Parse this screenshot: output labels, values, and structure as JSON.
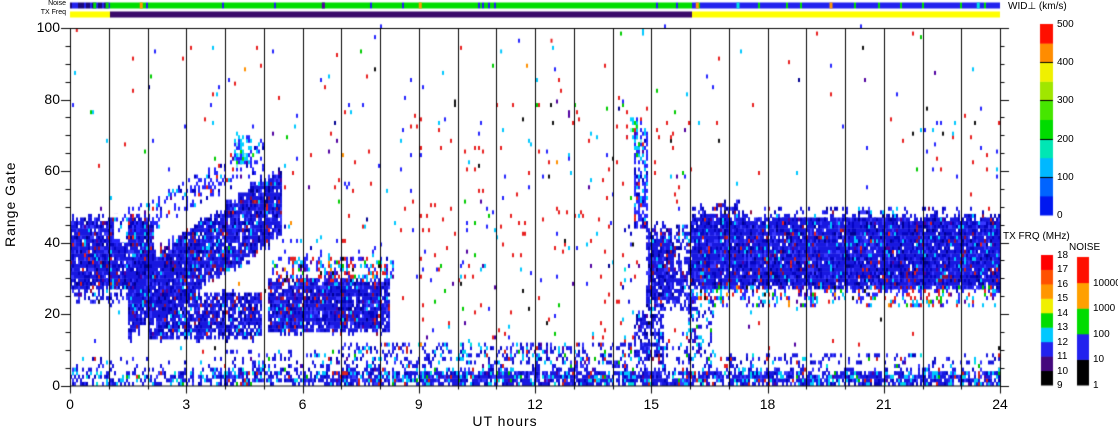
{
  "strips": {
    "noise_label": "Noise",
    "txfreq_label": "TX Freq",
    "noise_segments": [
      {
        "t0": 0,
        "t1": 1.05,
        "base": "#2222ee",
        "alt": "#1a0a7a",
        "alt_prob": 0.48,
        "flecks": [
          {
            "t": 0.6,
            "c": "#00dd00"
          },
          {
            "t": 0.92,
            "c": "#00dd00"
          }
        ]
      },
      {
        "t0": 1.05,
        "t1": 16.05,
        "base": "#00dd00",
        "alt": "#2222ee",
        "alt_prob": 0.05,
        "flecks": [
          {
            "t": 1.8,
            "c": "#ff9900"
          },
          {
            "t": 9.0,
            "c": "#ff9900"
          },
          {
            "t": 6.5,
            "c": "#5000a0"
          }
        ]
      },
      {
        "t0": 16.05,
        "t1": 24,
        "base": "#2222ee",
        "alt": "#00dd00",
        "alt_prob": 0.05,
        "flecks": [
          {
            "t": 16.15,
            "c": "#ff9900"
          },
          {
            "t": 17.2,
            "c": "#00e0e0"
          },
          {
            "t": 19.6,
            "c": "#ff9900"
          },
          {
            "t": 23.4,
            "c": "#00e0e0"
          }
        ]
      }
    ],
    "tx_segments": [
      {
        "t0": 0,
        "t1": 1.05,
        "base": "#ffff00"
      },
      {
        "t0": 1.05,
        "t1": 16.07,
        "base": "#3a0a6a"
      },
      {
        "t0": 16.07,
        "t1": 24,
        "base": "#ffff00"
      }
    ]
  },
  "axes": {
    "x": {
      "label": "UT hours",
      "range": [
        0,
        24
      ],
      "ticks": [
        "0",
        "3",
        "6",
        "9",
        "12",
        "15",
        "18",
        "21",
        "24"
      ],
      "tick_values": [
        0,
        3,
        6,
        9,
        12,
        15,
        18,
        21,
        24
      ],
      "minor_step": 1
    },
    "y": {
      "label": "Range Gate",
      "range": [
        0,
        100
      ],
      "ticks": [
        "0",
        "20",
        "40",
        "60",
        "80",
        "100"
      ],
      "tick_values": [
        0,
        20,
        40,
        60,
        80,
        100
      ],
      "minor_step": 5
    }
  },
  "colorbars": {
    "wid": {
      "title": "WID⊥ (km/s)",
      "ticks": [
        "0",
        "100",
        "200",
        "300",
        "400",
        "500"
      ],
      "colors": [
        "#0018f0",
        "#0064ff",
        "#00b8ff",
        "#00e6b4",
        "#00dc00",
        "#46e600",
        "#a0e600",
        "#f0f000",
        "#ff8c00",
        "#ff0f00"
      ],
      "divider_every": 2
    },
    "tx": {
      "title": "TX FRQ (MHz)",
      "ticks": [
        "9",
        "10",
        "11",
        "12",
        "13",
        "14",
        "15",
        "16",
        "17",
        "18"
      ],
      "colors": [
        "#000000",
        "#44087c",
        "#2222ee",
        "#00c8ff",
        "#00dc00",
        "#f0f000",
        "#ff9600",
        "#ff5000",
        "#ff0000"
      ],
      "divider_every": 0
    },
    "noise": {
      "title": "NOISE",
      "ticks": [
        "1",
        "10",
        "100",
        "1000",
        "10000"
      ],
      "colors": [
        "#000000",
        "#2222ee",
        "#00dc00",
        "#ffa000",
        "#ff1000"
      ],
      "divider_every": 0
    }
  },
  "chart_data": {
    "type": "heatmap",
    "title": "",
    "xlabel": "UT hours",
    "ylabel": "Range Gate",
    "value_label": "WID⊥ (km/s)",
    "xlim": [
      0,
      24
    ],
    "ylim": [
      0,
      100
    ],
    "hour_gridlines": true,
    "seed": 1234,
    "palettes": {
      "dense": [
        [
          "#1818e0",
          0.55
        ],
        [
          "#0505c0",
          0.18
        ],
        [
          "#3838ff",
          0.12
        ],
        [
          "#000090",
          0.05
        ],
        [
          "#00c8ff",
          0.04
        ],
        [
          "#901040",
          0.03
        ],
        [
          "#d02020",
          0.015
        ],
        [
          "#5000a0",
          0.015
        ]
      ],
      "dense_sp": [
        [
          "#1818e0",
          0.5
        ],
        [
          "#0505c0",
          0.12
        ],
        [
          "#3838ff",
          0.12
        ],
        [
          "#00c8ff",
          0.14
        ],
        [
          "#00e0e0",
          0.04
        ],
        [
          "#d02020",
          0.04
        ],
        [
          "#00c000",
          0.02
        ],
        [
          "#5000a0",
          0.02
        ]
      ],
      "speckle": [
        [
          "#2525ff",
          0.35
        ],
        [
          "#00c8ff",
          0.25
        ],
        [
          "#e82020",
          0.2
        ],
        [
          "#00cc00",
          0.06
        ],
        [
          "#5000a0",
          0.07
        ],
        [
          "#101010",
          0.04
        ],
        [
          "#ff9000",
          0.03
        ]
      ],
      "speckle_blue": [
        [
          "#2525ff",
          0.6
        ],
        [
          "#0000c0",
          0.15
        ],
        [
          "#00c8ff",
          0.15
        ],
        [
          "#5000a0",
          0.05
        ],
        [
          "#e82020",
          0.05
        ]
      ],
      "cyan": [
        [
          "#00d0ff",
          0.5
        ],
        [
          "#2525ff",
          0.3
        ],
        [
          "#00e000",
          0.1
        ],
        [
          "#80f0f0",
          0.1
        ]
      ],
      "noise": [
        [
          "#e82020",
          0.33
        ],
        [
          "#2525ff",
          0.28
        ],
        [
          "#00c8ff",
          0.17
        ],
        [
          "#5000a0",
          0.07
        ],
        [
          "#101010",
          0.05
        ],
        [
          "#00cc00",
          0.04
        ],
        [
          "#ff9000",
          0.02
        ],
        [
          "#000090",
          0.04
        ]
      ],
      "noise_red": [
        [
          "#e82020",
          0.55
        ],
        [
          "#2525ff",
          0.15
        ],
        [
          "#00c8ff",
          0.12
        ],
        [
          "#5000a0",
          0.08
        ],
        [
          "#101010",
          0.05
        ],
        [
          "#00cc00",
          0.05
        ]
      ]
    },
    "regions": [
      {
        "type": "block",
        "t0": 0,
        "t1": 2.15,
        "g0": 27,
        "g1": 46,
        "d": 0.93,
        "pal": "dense"
      },
      {
        "type": "block",
        "t0": 0.1,
        "t1": 2.4,
        "g0": 23,
        "g1": 27,
        "d": 0.4,
        "pal": "dense"
      },
      {
        "type": "hole",
        "t0": 1.12,
        "t1": 1.5,
        "g0": 40,
        "g1": 47
      },
      {
        "type": "diag",
        "t0": 1.5,
        "t1": 5.45,
        "gc0": 22,
        "gc1": 51,
        "hw": 9,
        "d": 0.92,
        "pal": "dense"
      },
      {
        "type": "block",
        "t0": 2.0,
        "t1": 4.95,
        "g0": 13,
        "g1": 25,
        "d": 0.82,
        "pal": "dense"
      },
      {
        "type": "diag",
        "t0": 1.1,
        "t1": 5.0,
        "gc0": 42,
        "gc1": 64,
        "hw": 3.5,
        "d": 0.3,
        "pal": "speckle_blue"
      },
      {
        "type": "block",
        "t0": 4.25,
        "t1": 4.72,
        "g0": 62,
        "g1": 69,
        "d": 0.6,
        "pal": "cyan"
      },
      {
        "type": "block",
        "t0": 5.1,
        "t1": 8.25,
        "g0": 15,
        "g1": 29,
        "d": 0.9,
        "pal": "dense"
      },
      {
        "type": "noise",
        "t0": 5.2,
        "t1": 8.35,
        "g0": 29,
        "g1": 35,
        "d": 0.4,
        "pal": "speckle"
      },
      {
        "type": "noise",
        "t0": 2.5,
        "t1": 8.3,
        "g0": 35,
        "g1": 44,
        "d": 0.05,
        "pal": "speckle_blue"
      },
      {
        "type": "noise",
        "t0": 5.5,
        "t1": 8.4,
        "g0": 44,
        "g1": 78,
        "d": 0.012,
        "pal": "noise"
      },
      {
        "type": "noise",
        "t0": 8.4,
        "t1": 16,
        "g0": 12,
        "g1": 78,
        "d": 0.022,
        "pal": "noise_red"
      },
      {
        "type": "noise",
        "t0": 14.25,
        "t1": 14.5,
        "g0": 10,
        "g1": 45,
        "d": 0.12,
        "pal": "dense_sp"
      },
      {
        "type": "block",
        "t0": 14.55,
        "t1": 14.9,
        "g0": 44,
        "g1": 71,
        "d": 0.55,
        "pal": "speckle_blue"
      },
      {
        "type": "noise",
        "t0": 14.45,
        "t1": 14.75,
        "g0": 66,
        "g1": 74,
        "d": 0.4,
        "pal": "cyan"
      },
      {
        "type": "block",
        "t0": 14.85,
        "t1": 16.05,
        "g0": 21,
        "g1": 44,
        "d": 0.55,
        "pal": "dense"
      },
      {
        "type": "block",
        "t0": 14.9,
        "t1": 15.6,
        "g0": 24,
        "g1": 40,
        "d": 0.8,
        "pal": "dense"
      },
      {
        "type": "block",
        "t0": 14.55,
        "t1": 15.35,
        "g0": 7,
        "g1": 20,
        "d": 0.55,
        "pal": "dense"
      },
      {
        "type": "noise",
        "t0": 15.9,
        "t1": 16.6,
        "g0": 8,
        "g1": 26,
        "d": 0.3,
        "pal": "dense_sp"
      },
      {
        "type": "block",
        "t0": 16.05,
        "t1": 24,
        "g0": 27,
        "g1": 46,
        "d": 0.96,
        "pal": "dense"
      },
      {
        "type": "block",
        "t0": 16.05,
        "t1": 17.3,
        "g0": 44,
        "g1": 50,
        "d": 0.5,
        "pal": "dense"
      },
      {
        "type": "noise",
        "t0": 16.05,
        "t1": 24,
        "g0": 46,
        "g1": 49,
        "d": 0.22,
        "pal": "dense"
      },
      {
        "type": "noise",
        "t0": 16.05,
        "t1": 24,
        "g0": 22,
        "g1": 27,
        "d": 0.3,
        "pal": "speckle"
      },
      {
        "type": "block",
        "t0": 0,
        "t1": 2,
        "g0": 0,
        "g1": 3,
        "d": 0.42,
        "pal": "dense_sp"
      },
      {
        "type": "block",
        "t0": 2,
        "t1": 4,
        "g0": 0,
        "g1": 3,
        "d": 0.5,
        "pal": "dense_sp"
      },
      {
        "type": "block",
        "t0": 4,
        "t1": 7,
        "g0": 0,
        "g1": 3,
        "d": 0.65,
        "pal": "dense_sp"
      },
      {
        "type": "block",
        "t0": 7,
        "t1": 16,
        "g0": 0,
        "g1": 3,
        "d": 0.85,
        "pal": "dense_sp"
      },
      {
        "type": "block",
        "t0": 16,
        "t1": 24,
        "g0": 0,
        "g1": 3,
        "d": 0.8,
        "pal": "dense_sp"
      },
      {
        "type": "noise",
        "t0": 0,
        "t1": 4,
        "g0": 3,
        "g1": 7,
        "d": 0.12,
        "pal": "dense_sp"
      },
      {
        "type": "noise",
        "t0": 4,
        "t1": 7,
        "g0": 3,
        "g1": 9,
        "d": 0.2,
        "pal": "dense_sp"
      },
      {
        "type": "noise",
        "t0": 7,
        "t1": 16,
        "g0": 3,
        "g1": 11,
        "d": 0.28,
        "pal": "dense_sp"
      },
      {
        "type": "noise",
        "t0": 16,
        "t1": 24,
        "g0": 3,
        "g1": 8,
        "d": 0.2,
        "pal": "dense_sp"
      },
      {
        "type": "noise",
        "t0": 21.3,
        "t1": 24,
        "g0": 60,
        "g1": 73,
        "d": 0.035,
        "pal": "speckle"
      },
      {
        "type": "noise",
        "t0": 0,
        "t1": 24,
        "g0": 0,
        "g1": 100,
        "d": 0.007,
        "pal": "noise"
      }
    ],
    "extra_points": [
      {
        "t": 0.15,
        "g": 99,
        "c": "#e82020"
      },
      {
        "t": 14.6,
        "g": 72,
        "c": "#00dd00"
      },
      {
        "t": 4.7,
        "g": 64,
        "c": "#00dd00"
      },
      {
        "t": 12.4,
        "g": 96,
        "c": "#e82020"
      },
      {
        "t": 11.1,
        "g": 93,
        "c": "#00c8ff"
      }
    ]
  }
}
